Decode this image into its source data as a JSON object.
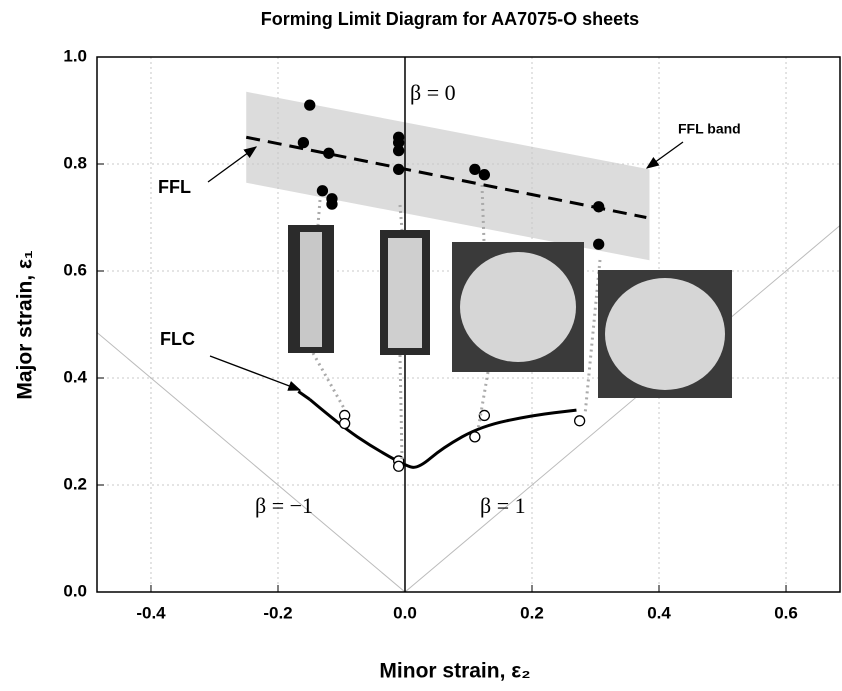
{
  "chart_data": {
    "type": "line",
    "title": "Forming Limit Diagram for AA7075-O sheets",
    "x_label": "Minor strain, ε₂",
    "y_label": "Major strain, ε₁",
    "xlim": [
      -0.485,
      0.685
    ],
    "ylim": [
      0,
      1
    ],
    "xticks": [
      -0.4,
      -0.2,
      {
        "value": 0,
        "label": "0.0"
      },
      0.2,
      0.4,
      0.6
    ],
    "yticks": [
      {
        "value": 0,
        "label": "0.0"
      },
      0.2,
      0.4,
      0.6,
      0.8,
      {
        "value": 1,
        "label": "1.0"
      }
    ],
    "grid": true,
    "bands": [
      {
        "x": [
          -0.25,
          0.385
        ],
        "high": [
          0.935,
          0.79
        ],
        "low": [
          0.765,
          0.62
        ],
        "color": "#dcdcdc"
      }
    ],
    "series": [
      {
        "style": "dashed",
        "color": "#000000",
        "x": [
          -0.25,
          0.38
        ],
        "values": [
          0.85,
          0.7
        ]
      },
      {
        "style": "filled",
        "color": "#000000",
        "x": [
          -0.15,
          -0.16,
          -0.12,
          -0.13,
          -0.115,
          -0.115,
          -0.01,
          -0.01,
          -0.01,
          -0.01,
          0.11,
          0.125,
          0.305,
          0.305
        ],
        "values": [
          0.91,
          0.84,
          0.82,
          0.75,
          0.735,
          0.725,
          0.85,
          0.84,
          0.825,
          0.79,
          0.79,
          0.78,
          0.72,
          0.65
        ]
      },
      {
        "style": "dashed",
        "color": "#000000",
        "x": [
          -0.168,
          -0.15
        ],
        "values": [
          0.375,
          0.36
        ]
      },
      {
        "style": "solid",
        "color": "#000000",
        "x": [
          -0.15,
          -0.1,
          -0.05,
          0,
          0.02,
          0.06,
          0.12,
          0.2,
          0.27
        ],
        "values": [
          0.36,
          0.31,
          0.27,
          0.237,
          0.23,
          0.27,
          0.31,
          0.33,
          0.34
        ]
      },
      {
        "style": "open",
        "color": "#000000",
        "x": [
          -0.095,
          -0.095,
          -0.01,
          -0.01,
          0.11,
          0.125,
          0.275
        ],
        "values": [
          0.33,
          0.315,
          0.245,
          0.235,
          0.29,
          0.33,
          0.32
        ]
      }
    ],
    "annotations": [
      "β = 0",
      "FFL",
      "FFL  band",
      "FLC",
      "β = −1",
      "β = 1"
    ]
  }
}
